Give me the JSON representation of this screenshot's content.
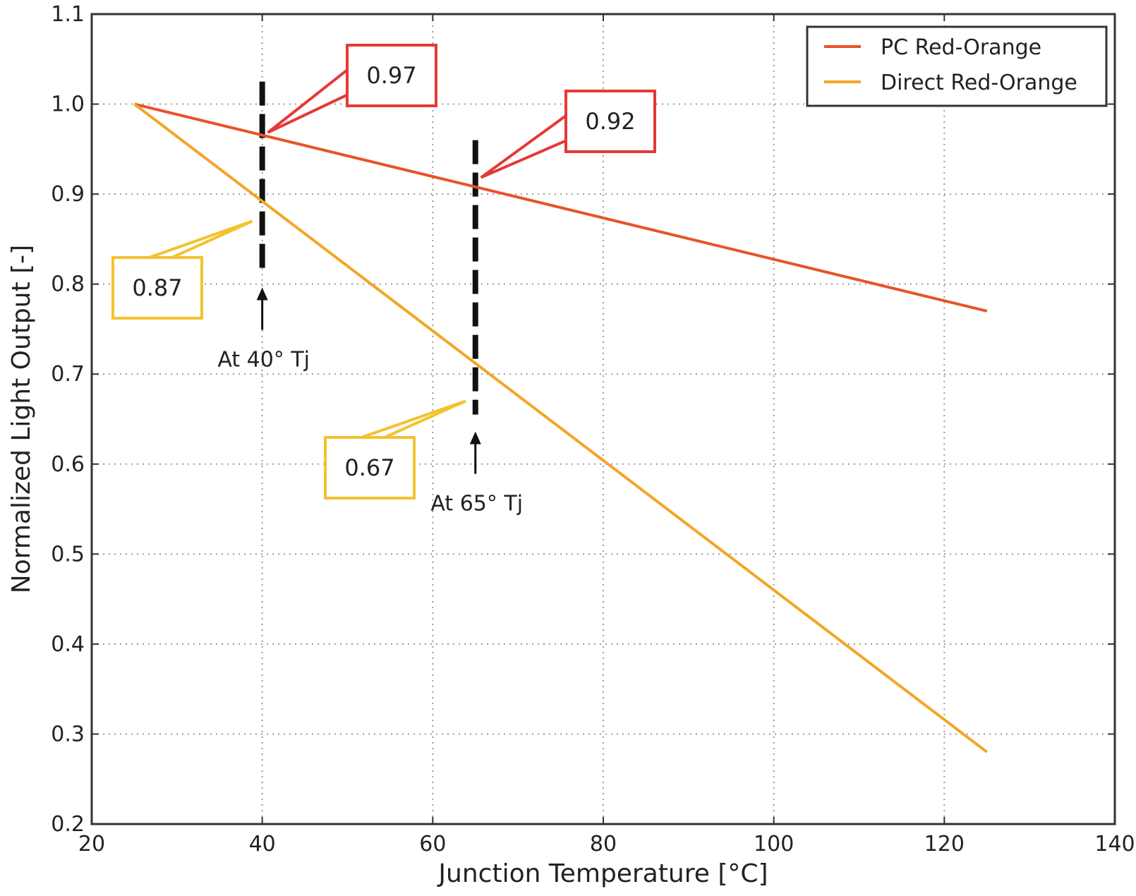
{
  "chart_data": {
    "type": "line",
    "xlabel": "Junction Temperature [°C]",
    "ylabel": "Normalized Light Output [-]",
    "xlim": [
      20,
      140
    ],
    "ylim": [
      0.2,
      1.1
    ],
    "x_ticks": [
      "20",
      "40",
      "60",
      "80",
      "100",
      "120",
      "140"
    ],
    "y_ticks": [
      "0.2",
      "0.3",
      "0.4",
      "0.5",
      "0.6",
      "0.7",
      "0.8",
      "0.9",
      "1.0",
      "1.1"
    ],
    "grid": true,
    "legend_position": "top-right",
    "series": [
      {
        "name": "PC Red-Orange",
        "color": "#e8532a",
        "x": [
          25,
          125
        ],
        "y": [
          1.0,
          0.77
        ]
      },
      {
        "name": "Direct Red-Orange",
        "color": "#f2a626",
        "x": [
          25,
          125
        ],
        "y": [
          1.0,
          0.28
        ]
      }
    ],
    "markers": [
      {
        "label": "At 40° Tj",
        "x": 40
      },
      {
        "label": "At 65° Tj",
        "x": 65
      }
    ],
    "callouts": [
      {
        "text": "0.97",
        "x": 40,
        "y": 0.97,
        "color": "#e53935"
      },
      {
        "text": "0.92",
        "x": 65,
        "y": 0.92,
        "color": "#e53935"
      },
      {
        "text": "0.87",
        "x": 40,
        "y": 0.87,
        "color": "#f2c230"
      },
      {
        "text": "0.67",
        "x": 65,
        "y": 0.67,
        "color": "#f2c230"
      }
    ]
  }
}
